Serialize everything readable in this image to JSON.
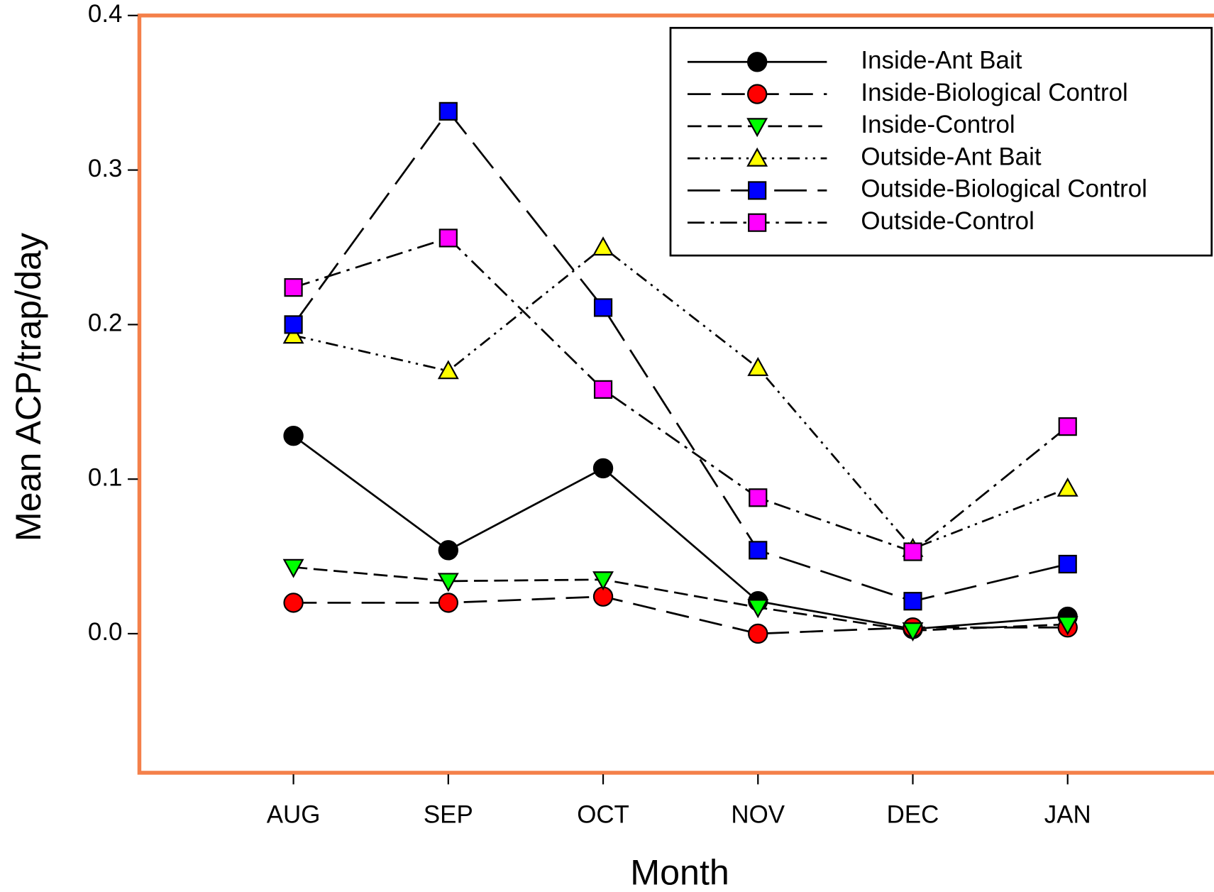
{
  "chart_data": {
    "type": "line",
    "xlabel": "Month",
    "ylabel": "Mean ACP/trap/day",
    "categories": [
      "AUG",
      "SEP",
      "OCT",
      "NOV",
      "DEC",
      "JAN"
    ],
    "ylim": [
      -0.09,
      0.4
    ],
    "yticks": [
      {
        "value": 0,
        "label": "0.0"
      },
      0.1,
      0.2,
      0.3,
      0.4
    ],
    "legend": "top-right",
    "series": [
      {
        "name": "Inside-Ant Bait",
        "color": "#000000",
        "marker": "circle",
        "line_style": "solid",
        "values": [
          0.128,
          0.054,
          0.107,
          0.021,
          0.003,
          0.011
        ]
      },
      {
        "name": "Inside-Biological Control",
        "color": "#ff0000",
        "marker": "circle",
        "line_style": "long-dash",
        "values": [
          0.02,
          0.02,
          0.024,
          0.0,
          0.004,
          0.004
        ]
      },
      {
        "name": "Inside-Control",
        "color": "#00ff00",
        "marker": "triangle-down",
        "line_style": "dash",
        "values": [
          0.043,
          0.034,
          0.035,
          0.017,
          0.002,
          0.006
        ]
      },
      {
        "name": "Outside-Ant Bait",
        "color": "#ffff00",
        "marker": "triangle-up",
        "line_style": "dash-dot-dot",
        "values": [
          0.193,
          0.17,
          0.25,
          0.172,
          0.055,
          0.094
        ]
      },
      {
        "name": "Outside-Biological Control",
        "color": "#0000ff",
        "marker": "square",
        "line_style": "longer-dash",
        "values": [
          0.2,
          0.338,
          0.211,
          0.054,
          0.021,
          0.045
        ]
      },
      {
        "name": "Outside-Control",
        "color": "#ff00ff",
        "marker": "square",
        "line_style": "dash-dot",
        "values": [
          0.224,
          0.256,
          0.158,
          0.088,
          0.053,
          0.134
        ]
      }
    ]
  }
}
